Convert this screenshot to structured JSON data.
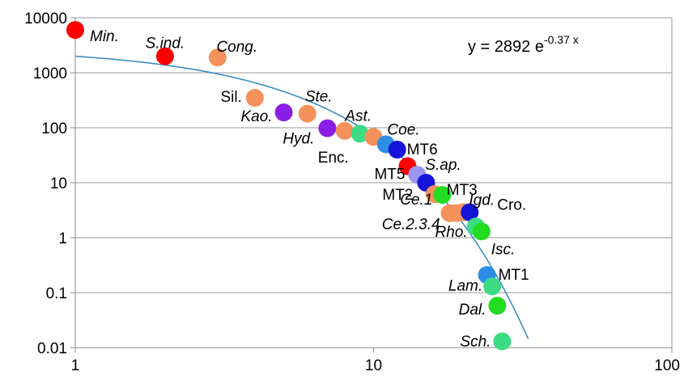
{
  "chart_data": {
    "type": "scatter",
    "x_scale": "log",
    "y_scale": "log",
    "xlim": [
      1,
      100
    ],
    "ylim": [
      0.01,
      10000
    ],
    "grid": "horizontal",
    "x_tick_labels": [
      "1",
      "10",
      "100"
    ],
    "y_tick_labels": [
      "0.01",
      "0.1",
      "1",
      "10",
      "100",
      "1000",
      "10000"
    ],
    "equation": {
      "prefix": "y = 2892 e",
      "exponent": "-0.37 x"
    },
    "trendline": {
      "a": 2892,
      "b": -0.37,
      "x_range": [
        1,
        33
      ],
      "color": "#3c8dc4"
    },
    "points": [
      {
        "label": "Min.",
        "x": 1,
        "y": 6000,
        "color": "#ff0000",
        "italic": true
      },
      {
        "label": "S.ind.",
        "x": 2,
        "y": 2000,
        "color": "#ff0000",
        "italic": true
      },
      {
        "label": "Cong.",
        "x": 3,
        "y": 1900,
        "color": "#f5915a",
        "italic": true
      },
      {
        "label": "Sil.",
        "x": 4,
        "y": 350,
        "color": "#f5915a",
        "italic": false
      },
      {
        "label": "Kao.",
        "x": 5,
        "y": 190,
        "color": "#8a1ee6",
        "italic": true
      },
      {
        "label": "Ste.",
        "x": 6,
        "y": 180,
        "color": "#f5915a",
        "italic": true
      },
      {
        "label": "Hyd.",
        "x": 7,
        "y": 98,
        "color": "#8a1ee6",
        "italic": true
      },
      {
        "label": "Enc.",
        "x": 8,
        "y": 88,
        "color": "#f5915a",
        "italic": false
      },
      {
        "label": "Ast.",
        "x": 9,
        "y": 78,
        "color": "#3ddc84",
        "italic": true
      },
      {
        "label": "Coe.",
        "x": 10,
        "y": 68,
        "color": "#f5915a",
        "italic": true
      },
      {
        "label": "",
        "x": 11,
        "y": 50,
        "color": "#2b8de6",
        "italic": false
      },
      {
        "label": "MT6",
        "x": 12,
        "y": 40,
        "color": "#1414d8",
        "italic": false
      },
      {
        "label": "MT5",
        "x": 13,
        "y": 20,
        "color": "#ff0000",
        "italic": false
      },
      {
        "label": "S.ap.",
        "x": 14,
        "y": 14,
        "color": "#9a96f0",
        "italic": true
      },
      {
        "label": "MT2",
        "x": 15,
        "y": 10,
        "color": "#1414d8",
        "italic": false
      },
      {
        "label": "MT3",
        "x": 16,
        "y": 6.2,
        "color": "#f5915a",
        "italic": false
      },
      {
        "label": "Ce.1",
        "x": 17,
        "y": 6.0,
        "color": "#22dd22",
        "italic": true
      },
      {
        "label": "Ce.2.3.4",
        "x": 18,
        "y": 2.8,
        "color": "#f5915a",
        "italic": true
      },
      {
        "label": "",
        "x": 19,
        "y": 2.8,
        "color": "#f5915a",
        "italic": false
      },
      {
        "label": "Igd.",
        "x": 20,
        "y": 2.9,
        "color": "#f5915a",
        "italic": true
      },
      {
        "label": "Cro.",
        "x": 21,
        "y": 2.9,
        "color": "#1414d8",
        "italic": false
      },
      {
        "label": "Rho.",
        "x": 22,
        "y": 1.6,
        "color": "#3ddc84",
        "italic": true
      },
      {
        "label": "Isc.",
        "x": 23,
        "y": 1.3,
        "color": "#22dd22",
        "italic": true
      },
      {
        "label": "MT1",
        "x": 24,
        "y": 0.21,
        "color": "#2b8de6",
        "italic": false
      },
      {
        "label": "Lam.",
        "x": 25,
        "y": 0.13,
        "color": "#3ddc84",
        "italic": true
      },
      {
        "label": "Dal.",
        "x": 26,
        "y": 0.058,
        "color": "#22dd22",
        "italic": true
      },
      {
        "label": "Sch.",
        "x": 27,
        "y": 0.013,
        "color": "#3ddc84",
        "italic": true
      }
    ]
  }
}
